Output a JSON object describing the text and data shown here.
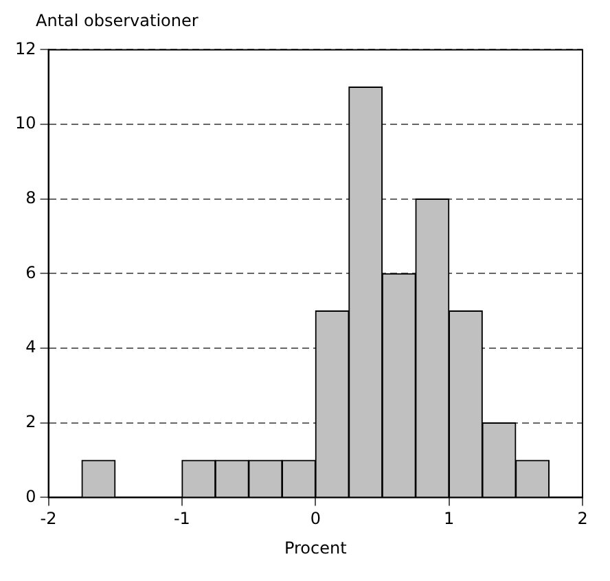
{
  "chart_data": {
    "type": "histogram",
    "ylabel": "Antal observationer",
    "xlabel": "Procent",
    "bins": [
      -1.75,
      -1.5,
      -1.25,
      -1,
      -0.75,
      -0.5,
      -0.25,
      0,
      0.25,
      0.5,
      0.75,
      1,
      1.25,
      1.5,
      1.75
    ],
    "values": [
      1,
      0,
      0,
      1,
      1,
      1,
      1,
      5,
      11,
      6,
      8,
      5,
      2,
      1
    ],
    "color": "#c0c0c0",
    "xlim": [
      -2,
      2
    ],
    "xticks": [
      -2,
      -1,
      0,
      1,
      2
    ],
    "ylim": [
      0,
      12
    ],
    "yticks": [
      0,
      2,
      4,
      6,
      8,
      10,
      12
    ],
    "grid": "y"
  }
}
